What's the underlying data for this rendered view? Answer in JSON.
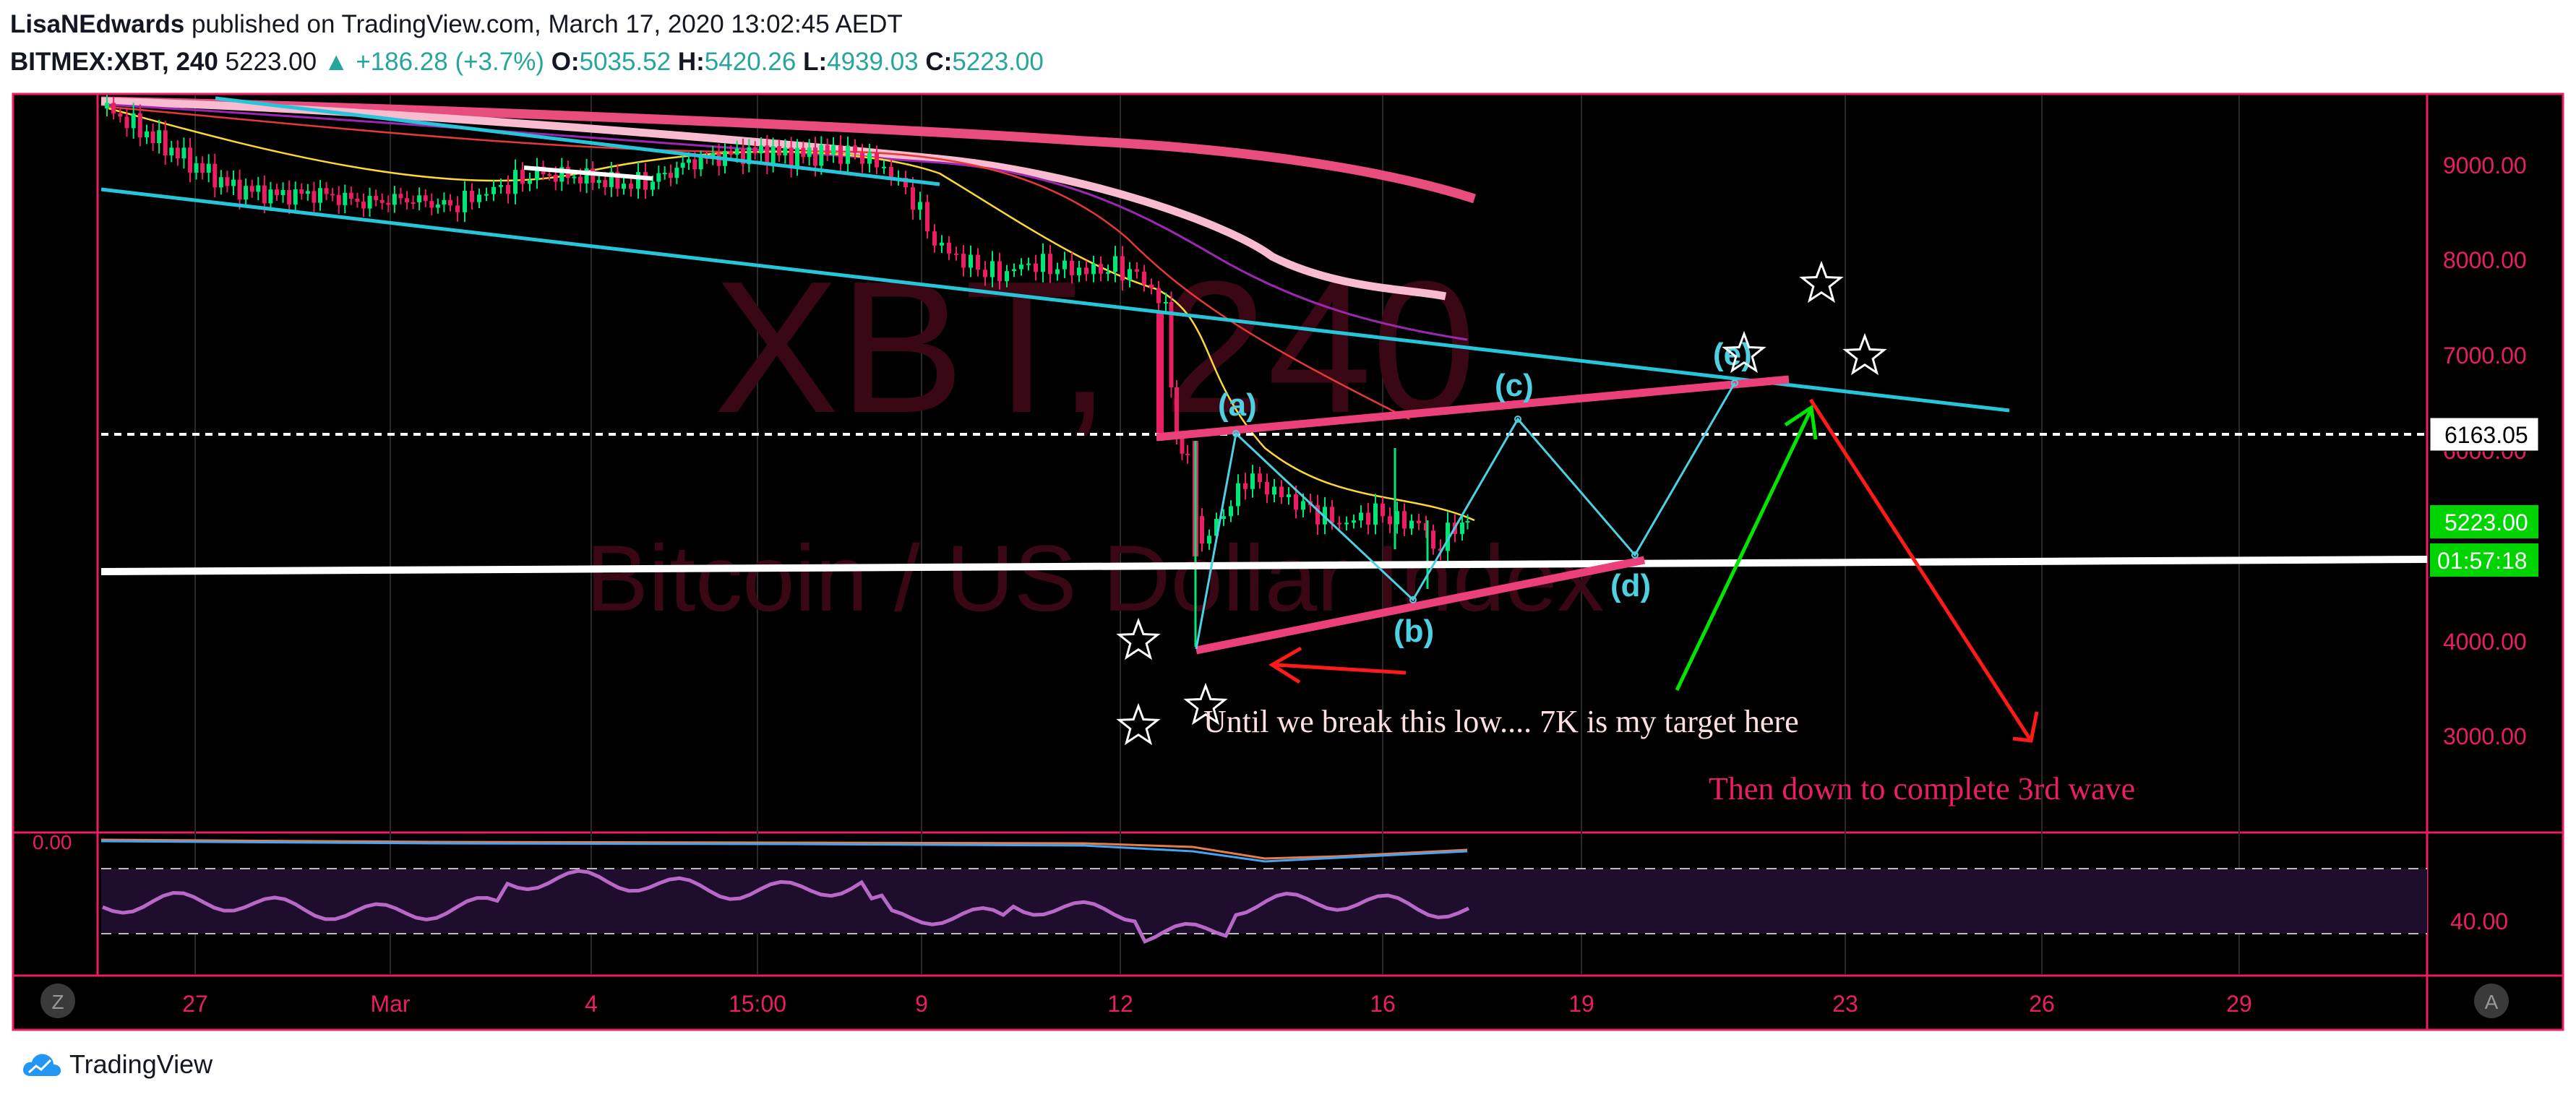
{
  "header": {
    "publisher": "LisaNEdwards",
    "published_text": "published on TradingView.com, March 17, 2020 13:02:45 AEDT",
    "symbol": "BITMEX:XBT, 240",
    "last": "5223.00",
    "change": "▲ +186.28 (+3.7%)",
    "o_label": "O:",
    "o": "5035.52",
    "h_label": "H:",
    "h": "5420.26",
    "l_label": "L:",
    "l": "4939.03",
    "c_label": "C:",
    "c": "5223.00"
  },
  "watermark": {
    "symbol": "XBT, 240",
    "name": "Bitcoin / US Dollar Index"
  },
  "price_axis": [
    "9000.00",
    "8000.00",
    "7000.00",
    "6000.00",
    "4000.00",
    "3000.00"
  ],
  "price_tags": {
    "dashed_level": "6163.05",
    "last_price": "5223.00",
    "countdown": "01:57:18"
  },
  "oscillator": {
    "top_label": "0.00",
    "rsi_label": "40.00"
  },
  "time_axis": [
    "27",
    "Mar",
    "4",
    "15:00",
    "9",
    "12",
    "16",
    "19",
    "23",
    "26",
    "29"
  ],
  "corner_buttons": {
    "left": "Z",
    "right": "A"
  },
  "wave_labels": [
    "(a)",
    "(b)",
    "(c)",
    "(d)",
    "(e)"
  ],
  "annotations": {
    "main": "Until we break this low.... 7K is my target  here",
    "secondary": "Then down to complete 3rd wave"
  },
  "footer": {
    "brand": "TradingView"
  },
  "colors": {
    "frame": "#e91e63",
    "bg": "#000000",
    "up": "#00e676",
    "down": "#e91e63",
    "channel": "#26c6da",
    "wave": "#4dd0e1",
    "triangle": "#ec407a",
    "green_arrow": "#00e600",
    "red_arrow": "#ff1a1a",
    "rsi": "#ba68c8"
  },
  "chart_data": {
    "type": "candlestick",
    "x_range": [
      "Feb 25",
      "Mar 31"
    ],
    "y_range": [
      2000,
      9700
    ],
    "key_levels": {
      "horizontal_dashed": 6163.05,
      "support": 4700,
      "last": 5223.0
    },
    "wave_points": [
      {
        "label": "(a)",
        "price": 6100
      },
      {
        "label": "(b)",
        "price": 4300
      },
      {
        "label": "(c)",
        "price": 6300
      },
      {
        "label": "(d)",
        "price": 4900
      },
      {
        "label": "(e)",
        "price": 6600
      }
    ],
    "projection": {
      "target": 7000
    }
  }
}
